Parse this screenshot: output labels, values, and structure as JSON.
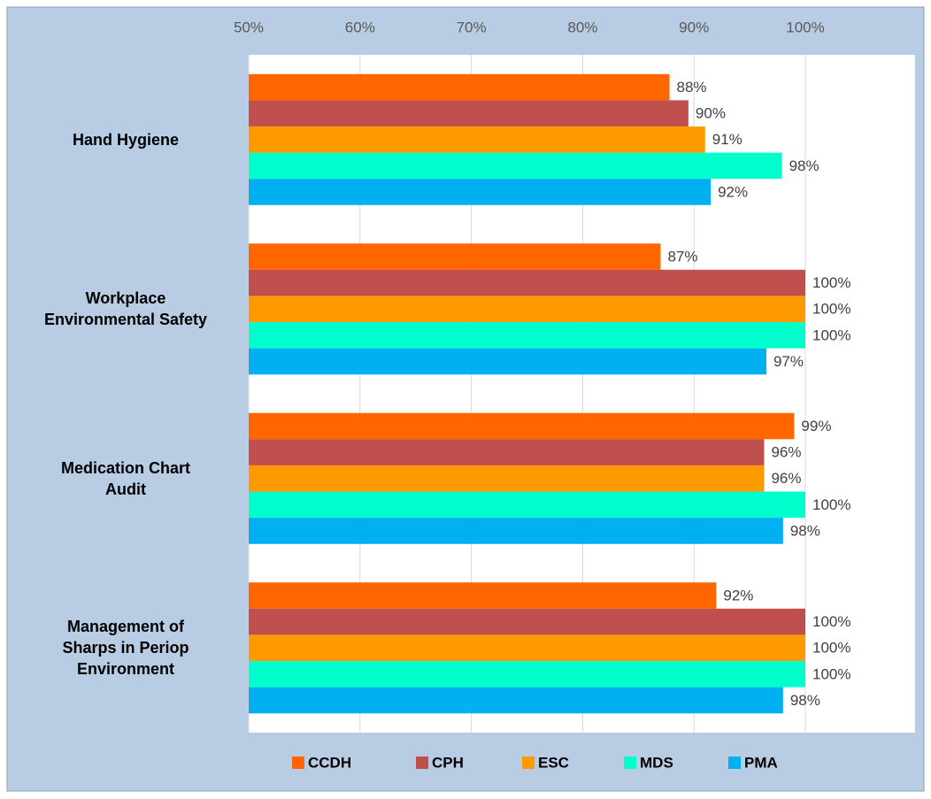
{
  "chart_data": {
    "type": "bar",
    "orientation": "horizontal",
    "categories": [
      "Hand Hygiene",
      "Workplace\nEnvironmental Safety",
      "Medication Chart\nAudit",
      "Management of\nSharps in Periop\nEnvironment"
    ],
    "series": [
      {
        "name": "CCDH",
        "color": "#ff6600",
        "values": [
          87.8,
          87.0,
          99.0,
          92.0
        ],
        "value_labels": [
          "88%",
          "87%",
          "99%",
          "92%"
        ]
      },
      {
        "name": "CPH",
        "color": "#c0504d",
        "values": [
          89.5,
          100,
          96.3,
          100
        ],
        "value_labels": [
          "90%",
          "100%",
          "96%",
          "100%"
        ]
      },
      {
        "name": "ESC",
        "color": "#ff9900",
        "values": [
          91.0,
          100,
          96.3,
          100
        ],
        "value_labels": [
          "91%",
          "100%",
          "96%",
          "100%"
        ]
      },
      {
        "name": "MDS",
        "color": "#00ffcc",
        "values": [
          97.9,
          100,
          100,
          100
        ],
        "value_labels": [
          "98%",
          "100%",
          "100%",
          "100%"
        ]
      },
      {
        "name": "PMA",
        "color": "#00b0f0",
        "values": [
          91.5,
          96.5,
          98.0,
          98.0
        ],
        "value_labels": [
          "92%",
          "97%",
          "98%",
          "98%"
        ]
      }
    ],
    "xlim": [
      50,
      100
    ],
    "xticks": [
      {
        "value": 50,
        "label": "50%"
      },
      {
        "value": 60,
        "label": "60%"
      },
      {
        "value": 70,
        "label": "70%"
      },
      {
        "value": 80,
        "label": "80%"
      },
      {
        "value": 90,
        "label": "90%"
      },
      {
        "value": 100,
        "label": "100%"
      }
    ],
    "grid": true,
    "legend": "bottom"
  }
}
